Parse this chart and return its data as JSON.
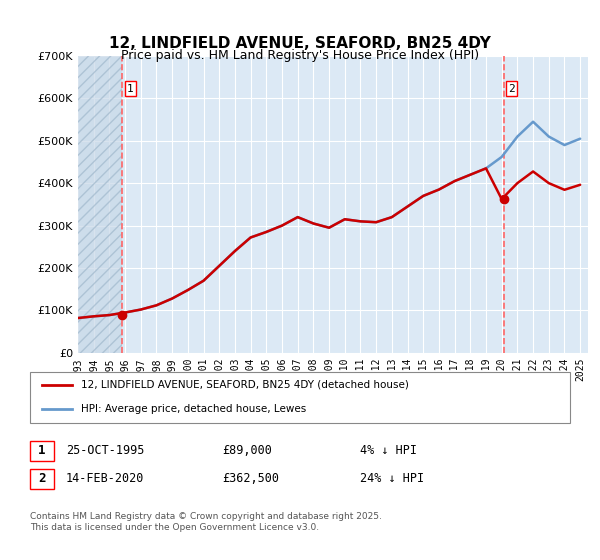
{
  "title": "12, LINDFIELD AVENUE, SEAFORD, BN25 4DY",
  "subtitle": "Price paid vs. HM Land Registry's House Price Index (HPI)",
  "ylabel": "",
  "ylim": [
    0,
    700000
  ],
  "yticks": [
    0,
    100000,
    200000,
    300000,
    400000,
    500000,
    600000,
    700000
  ],
  "ytick_labels": [
    "£0",
    "£100K",
    "£200K",
    "£300K",
    "£400K",
    "£500K",
    "£600K",
    "£700K"
  ],
  "xlim_start": 1993.0,
  "xlim_end": 2025.5,
  "background_color": "#dce9f5",
  "plot_bg": "#dce9f5",
  "hatch_color": "#b0c4d8",
  "red_line_color": "#cc0000",
  "blue_line_color": "#6699cc",
  "transaction1_date": "25-OCT-1995",
  "transaction1_price": 89000,
  "transaction1_year": 1995.83,
  "transaction1_label": "1",
  "transaction2_date": "14-FEB-2020",
  "transaction2_price": 362500,
  "transaction2_year": 2020.12,
  "transaction2_label": "2",
  "legend_line1": "12, LINDFIELD AVENUE, SEAFORD, BN25 4DY (detached house)",
  "legend_line2": "HPI: Average price, detached house, Lewes",
  "table_row1": [
    "1",
    "25-OCT-1995",
    "£89,000",
    "4% ↓ HPI"
  ],
  "table_row2": [
    "2",
    "14-FEB-2020",
    "£362,500",
    "24% ↓ HPI"
  ],
  "footer": "Contains HM Land Registry data © Crown copyright and database right 2025.\nThis data is licensed under the Open Government Licence v3.0.",
  "grid_color": "#ffffff",
  "dashed_line_color": "#ff6666"
}
